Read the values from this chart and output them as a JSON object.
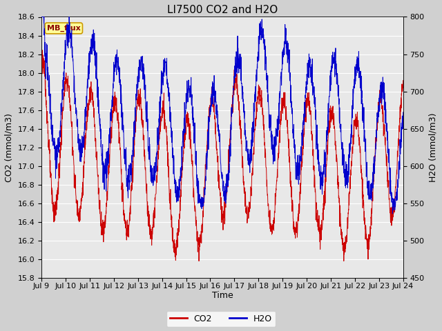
{
  "title": "LI7500 CO2 and H2O",
  "xlabel": "Time",
  "ylabel_left": "CO2 (mmol/m3)",
  "ylabel_right": "H2O (mmol/m3)",
  "ylim_left": [
    15.8,
    18.6
  ],
  "ylim_right": [
    450,
    800
  ],
  "yticks_left": [
    15.8,
    16.0,
    16.2,
    16.4,
    16.6,
    16.8,
    17.0,
    17.2,
    17.4,
    17.6,
    17.8,
    18.0,
    18.2,
    18.4,
    18.6
  ],
  "yticks_right": [
    450,
    500,
    550,
    600,
    650,
    700,
    750,
    800
  ],
  "xtick_labels": [
    "Jul 9",
    "Jul 10",
    "Jul 11",
    "Jul 12",
    "Jul 13",
    "Jul 14",
    "Jul 15",
    "Jul 16",
    "Jul 17",
    "Jul 18",
    "Jul 19",
    "Jul 20",
    "Jul 21",
    "Jul 22",
    "Jul 23",
    "Jul 24"
  ],
  "co2_color": "#cc0000",
  "h2o_color": "#0000cc",
  "fig_bg_color": "#d0d0d0",
  "plot_bg_color": "#e8e8e8",
  "grid_color": "#ffffff",
  "legend_co2": "CO2",
  "legend_h2o": "H2O",
  "stamp_text": "MB_flux",
  "stamp_bg": "#ffff99",
  "stamp_border": "#cc9900",
  "title_fontsize": 11,
  "axis_fontsize": 9,
  "tick_fontsize": 8
}
